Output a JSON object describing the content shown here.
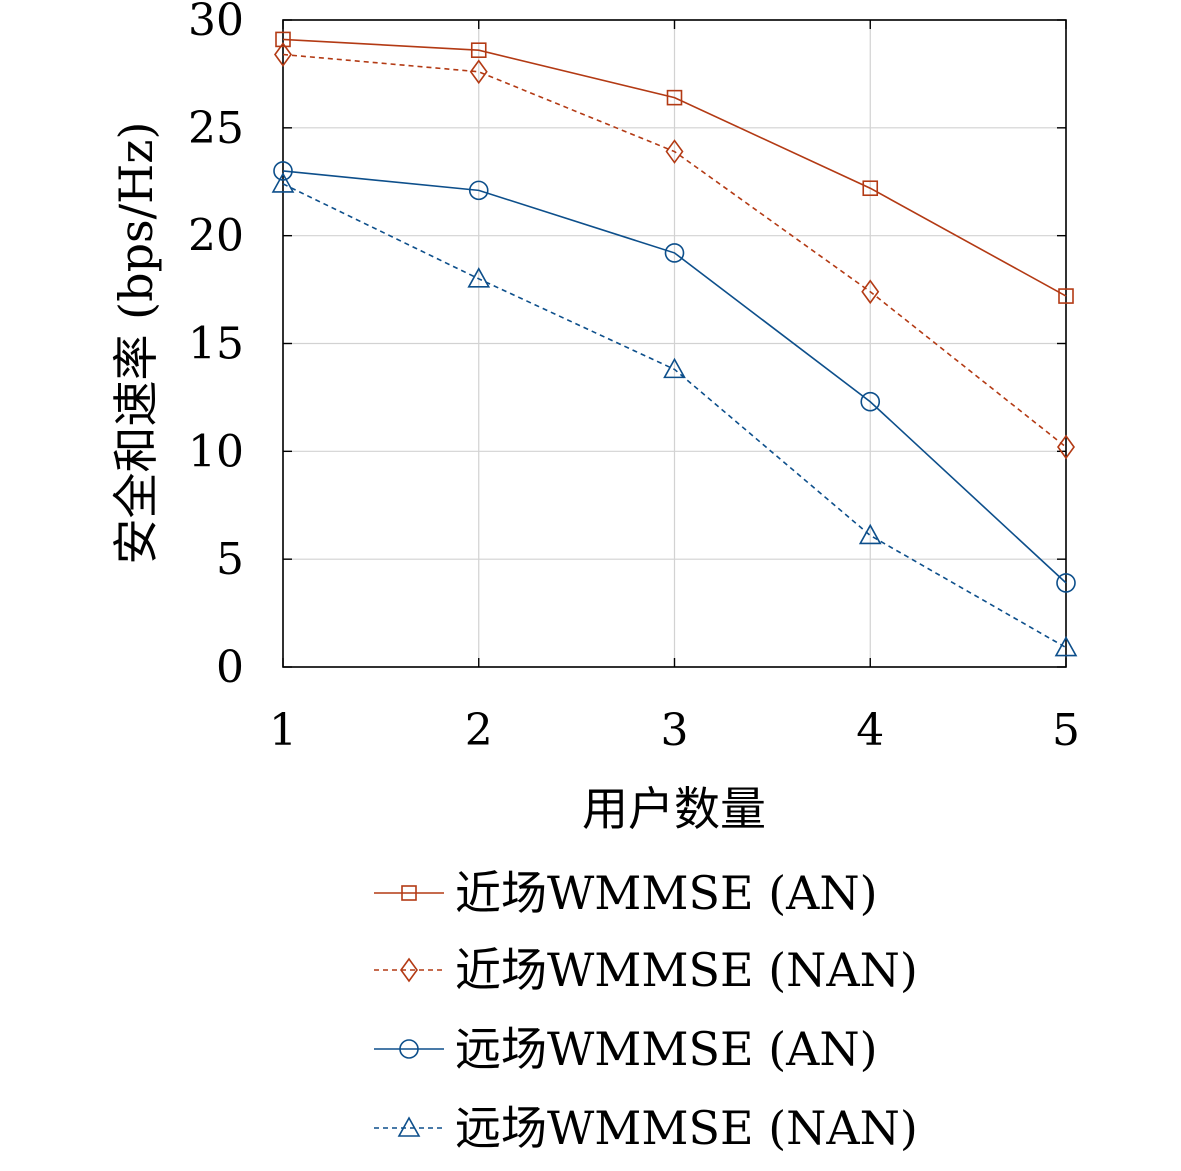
{
  "chart_data": {
    "type": "line",
    "xlabel": "用户数量",
    "ylabel": "安全和速率 (bps/Hz)",
    "x": [
      1,
      2,
      3,
      4,
      5
    ],
    "xticks": [
      "1",
      "2",
      "3",
      "4",
      "5"
    ],
    "yticks": [
      "0",
      "5",
      "10",
      "15",
      "20",
      "25",
      "30"
    ],
    "xlim": [
      1,
      5
    ],
    "ylim": [
      0,
      30
    ],
    "grid": true,
    "legend_position": "below",
    "series": [
      {
        "name": "近场WMMSE (AN)",
        "values": [
          29.1,
          28.6,
          26.4,
          22.2,
          17.2
        ],
        "color": "#b33a14",
        "marker": "square",
        "dash": "solid"
      },
      {
        "name": "近场WMMSE (NAN)",
        "values": [
          28.4,
          27.6,
          23.9,
          17.4,
          10.2
        ],
        "color": "#b33a14",
        "marker": "diamond",
        "dash": "dashed"
      },
      {
        "name": "远场WMMSE (AN)",
        "values": [
          23.0,
          22.1,
          19.2,
          12.3,
          3.9
        ],
        "color": "#0d4f8b",
        "marker": "circle",
        "dash": "solid"
      },
      {
        "name": "远场WMMSE (NAN)",
        "values": [
          22.4,
          18.0,
          13.8,
          6.1,
          0.9
        ],
        "color": "#0d4f8b",
        "marker": "triangle",
        "dash": "dashed"
      }
    ]
  }
}
